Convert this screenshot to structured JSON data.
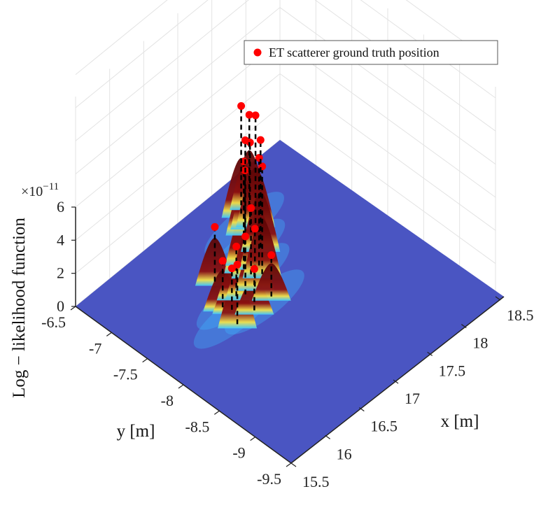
{
  "chart_data": {
    "type": "surface3d",
    "title": "",
    "xlabel": "x [m]",
    "ylabel": "y [m]",
    "zlabel": "Log − likelihood function",
    "z_exponent_label": "×10",
    "z_exponent_power": "−11",
    "xlim": [
      15.5,
      18.5
    ],
    "ylim": [
      -9.5,
      -6.5
    ],
    "zlim": [
      0,
      6
    ],
    "x_ticks": [
      "15.5",
      "16",
      "16.5",
      "17",
      "17.5",
      "18",
      "18.5"
    ],
    "y_ticks": [
      "-9.5",
      "-9",
      "-8.5",
      "-8",
      "-7.5",
      "-7",
      "-6.5"
    ],
    "z_ticks": [
      "0",
      "2",
      "4",
      "6"
    ],
    "grid": true,
    "legend": {
      "placement": "top-right",
      "entries": [
        "ET scatterer ground truth position"
      ]
    },
    "colors": {
      "surface_base": "#4a55c2",
      "peak": "#7a0a0a",
      "marker": "#ff0000",
      "stem": "#000000"
    },
    "scatterers": [
      {
        "x": 17.1,
        "y": -7.58,
        "z": 6.5
      },
      {
        "x": 17.16,
        "y": -7.48,
        "z": 6.5
      },
      {
        "x": 17.34,
        "y": -7.33,
        "z": 6.5
      },
      {
        "x": 17.02,
        "y": -7.4,
        "z": 6.5
      },
      {
        "x": 17.54,
        "y": -7.07,
        "z": 6.5
      },
      {
        "x": 17.1,
        "y": -7.34,
        "z": 5.5
      },
      {
        "x": 17.39,
        "y": -7.07,
        "z": 5.5
      },
      {
        "x": 17.48,
        "y": -7.05,
        "z": 5.0
      },
      {
        "x": 17.66,
        "y": -6.87,
        "z": 5.5
      },
      {
        "x": 17.53,
        "y": -6.88,
        "z": 6.5
      },
      {
        "x": 17.02,
        "y": -7.5,
        "z": 4.0
      },
      {
        "x": 16.93,
        "y": -7.64,
        "z": 3.5
      },
      {
        "x": 16.71,
        "y": -7.59,
        "z": 3.0
      },
      {
        "x": 16.79,
        "y": -7.64,
        "z": 3.5
      },
      {
        "x": 16.51,
        "y": -7.59,
        "z": 2.8
      },
      {
        "x": 16.7,
        "y": -7.3,
        "z": 3.3
      },
      {
        "x": 16.45,
        "y": -7.85,
        "z": 3.6
      },
      {
        "x": 16.55,
        "y": -7.68,
        "z": 2.5
      },
      {
        "x": 16.95,
        "y": -7.85,
        "z": 2.5
      },
      {
        "x": 16.7,
        "y": -7.85,
        "z": 2.5
      }
    ]
  }
}
